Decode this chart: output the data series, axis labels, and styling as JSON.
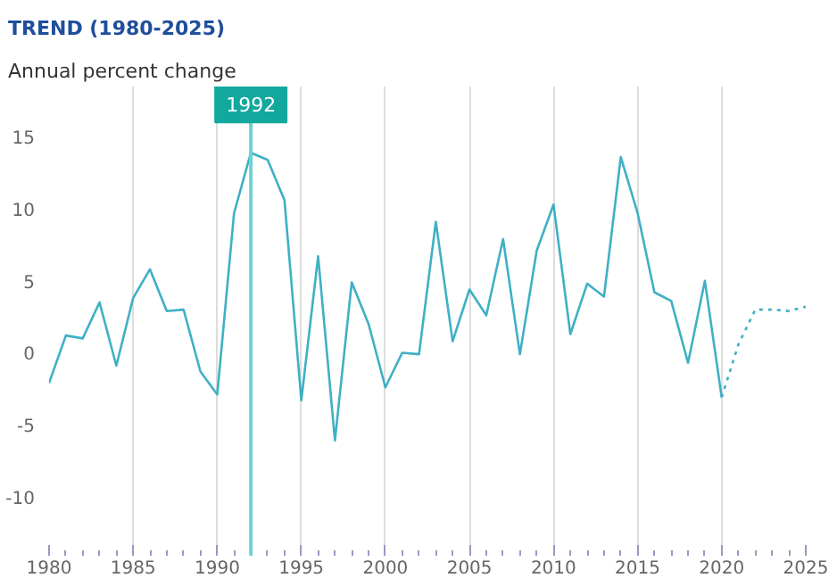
{
  "chart_data": {
    "type": "line",
    "title": "TREND (1980-2025)",
    "ylabel": "Annual percent change",
    "series": [
      {
        "color": "#3fb0c4",
        "line_style": "solid",
        "x": [
          1980,
          1981,
          1982,
          1983,
          1984,
          1985,
          1986,
          1987,
          1988,
          1989,
          1990,
          1991,
          1992,
          1993,
          1994,
          1995,
          1996,
          1997,
          1998,
          1999,
          2000,
          2001,
          2002,
          2003,
          2004,
          2005,
          2006,
          2007,
          2008,
          2009,
          2010,
          2011,
          2012,
          2013,
          2014,
          2015,
          2016,
          2017,
          2018,
          2019,
          2020
        ],
        "values": [
          -2.1,
          1.2,
          1.0,
          3.5,
          -0.9,
          3.8,
          5.8,
          2.9,
          3.0,
          -1.3,
          -2.9,
          9.7,
          13.9,
          13.4,
          10.6,
          -3.3,
          6.7,
          -6.1,
          4.9,
          2.0,
          -2.4,
          0.0,
          -0.1,
          9.1,
          0.8,
          4.4,
          2.6,
          7.9,
          -0.1,
          7.1,
          10.3,
          1.3,
          4.8,
          3.9,
          13.6,
          9.7,
          4.2,
          3.6,
          -0.7,
          5.0,
          -3.1
        ]
      },
      {
        "color": "#3fb0c4",
        "line_style": "dotted",
        "x": [
          2020,
          2021,
          2022,
          2023,
          2024,
          2025
        ],
        "values": [
          -3.1,
          0.6,
          3.0,
          3.0,
          2.9,
          3.2
        ]
      }
    ],
    "xlim": [
      1980,
      2025
    ],
    "ylim": [
      -14.1,
      18.5
    ],
    "xticks": [
      1980,
      1985,
      1990,
      1995,
      2000,
      2005,
      2010,
      2015,
      2020,
      2025
    ],
    "yticks": [
      -10,
      -5,
      0,
      5,
      10,
      15
    ],
    "grid": "x",
    "ref_lines": [
      {
        "axis": "x",
        "value": 1992,
        "label": "1992",
        "color": "#6fd3d0"
      }
    ]
  }
}
